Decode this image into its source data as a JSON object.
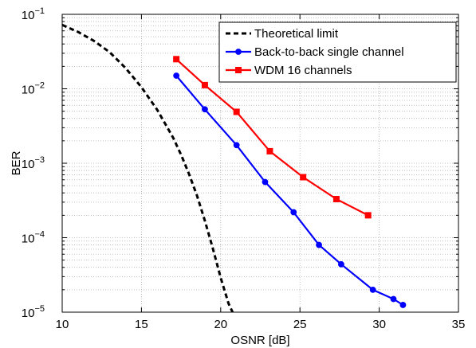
{
  "chart_data": {
    "type": "line",
    "xlabel": "OSNR [dB]",
    "ylabel": "BER",
    "xlim": [
      10,
      35
    ],
    "ylim": [
      1e-05,
      0.1
    ],
    "yscale": "log",
    "grid": true,
    "legend_position": "top-right",
    "x_ticks": [
      "10",
      "15",
      "20",
      "25",
      "30",
      "35"
    ],
    "y_ticks": [
      {
        "base": "10",
        "exp": "−5"
      },
      {
        "base": "10",
        "exp": "−4"
      },
      {
        "base": "10",
        "exp": "−3"
      },
      {
        "base": "10",
        "exp": "−2"
      },
      {
        "base": "10",
        "exp": "−1"
      }
    ],
    "series": [
      {
        "name": "Theoretical limit",
        "color": "#000000",
        "style": "dashed",
        "marker": "none",
        "x": [
          10,
          11,
          12,
          13,
          14,
          15,
          16,
          17,
          17.5,
          18,
          18.5,
          19,
          19.5,
          20,
          20.5,
          20.75
        ],
        "y": [
          0.072,
          0.058,
          0.044,
          0.031,
          0.019,
          0.0105,
          0.0052,
          0.0022,
          0.0013,
          0.00072,
          0.00037,
          0.00017,
          7.2e-05,
          2.9e-05,
          1.3e-05,
          8.8e-06
        ]
      },
      {
        "name": "Back-to-back single channel",
        "color": "#0000ff",
        "style": "solid",
        "marker": "circle",
        "x": [
          17.2,
          19.0,
          21.0,
          22.8,
          24.6,
          26.2,
          27.6,
          29.6,
          30.9,
          31.5
        ],
        "y": [
          0.015,
          0.0053,
          0.00175,
          0.00056,
          0.00022,
          8e-05,
          4.4e-05,
          2e-05,
          1.5e-05,
          1.25e-05
        ]
      },
      {
        "name": "WDM 16 channels",
        "color": "#ff0000",
        "style": "solid",
        "marker": "square",
        "x": [
          17.2,
          19.0,
          21.0,
          23.1,
          25.2,
          27.3,
          29.3
        ],
        "y": [
          0.025,
          0.0112,
          0.0049,
          0.00145,
          0.00065,
          0.00033,
          0.0002
        ]
      }
    ]
  }
}
